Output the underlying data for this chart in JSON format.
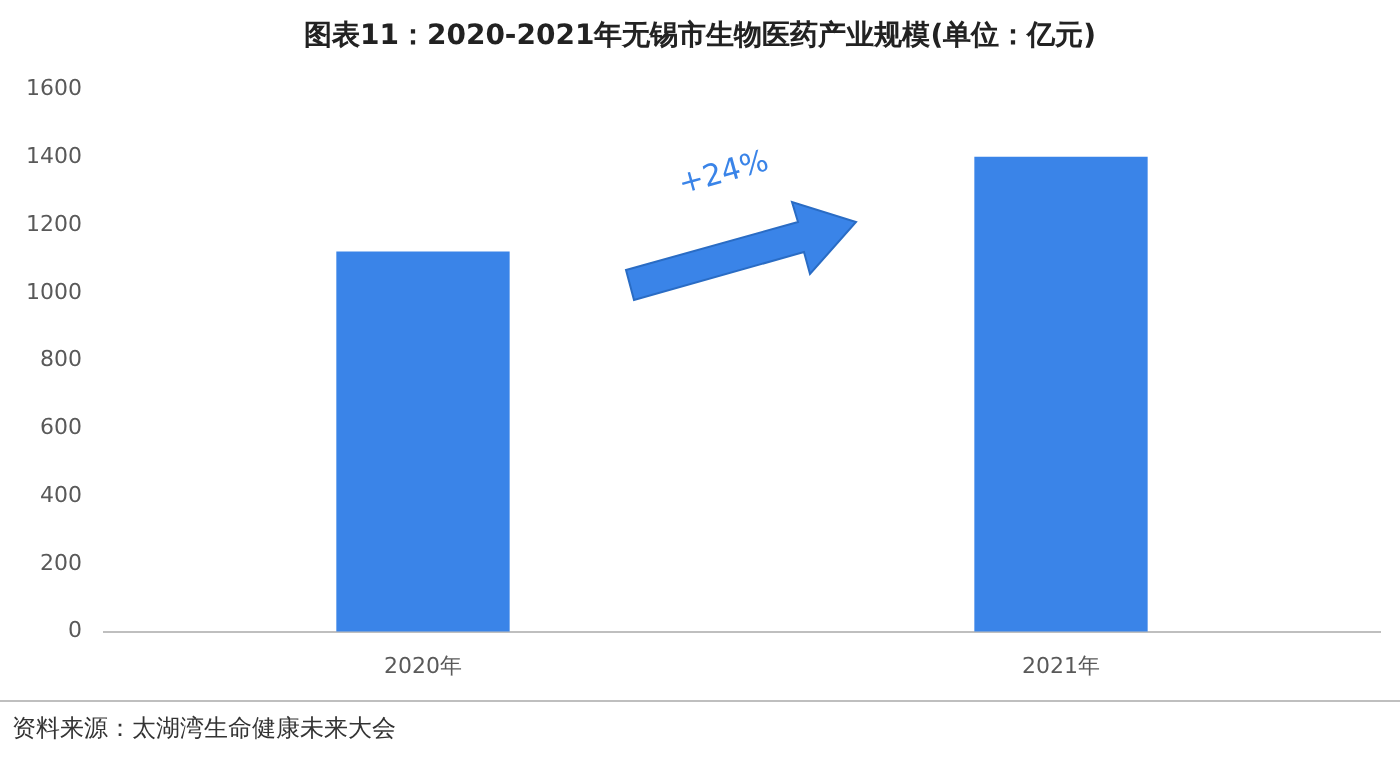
{
  "chart_data": {
    "type": "bar",
    "title": "图表11：2020-2021年无锡市生物医药产业规模(单位：亿元)",
    "categories": [
      "2020年",
      "2021年"
    ],
    "values": [
      1120,
      1400
    ],
    "color": "#3a84e8",
    "ylim": [
      0,
      1600
    ],
    "yticks": [
      0,
      200,
      400,
      600,
      800,
      1000,
      1200,
      1400,
      1600
    ],
    "grid": false,
    "legend": false,
    "annotations": [
      "+24%",
      "资料来源：太湖湾生命健康未来大会"
    ]
  }
}
